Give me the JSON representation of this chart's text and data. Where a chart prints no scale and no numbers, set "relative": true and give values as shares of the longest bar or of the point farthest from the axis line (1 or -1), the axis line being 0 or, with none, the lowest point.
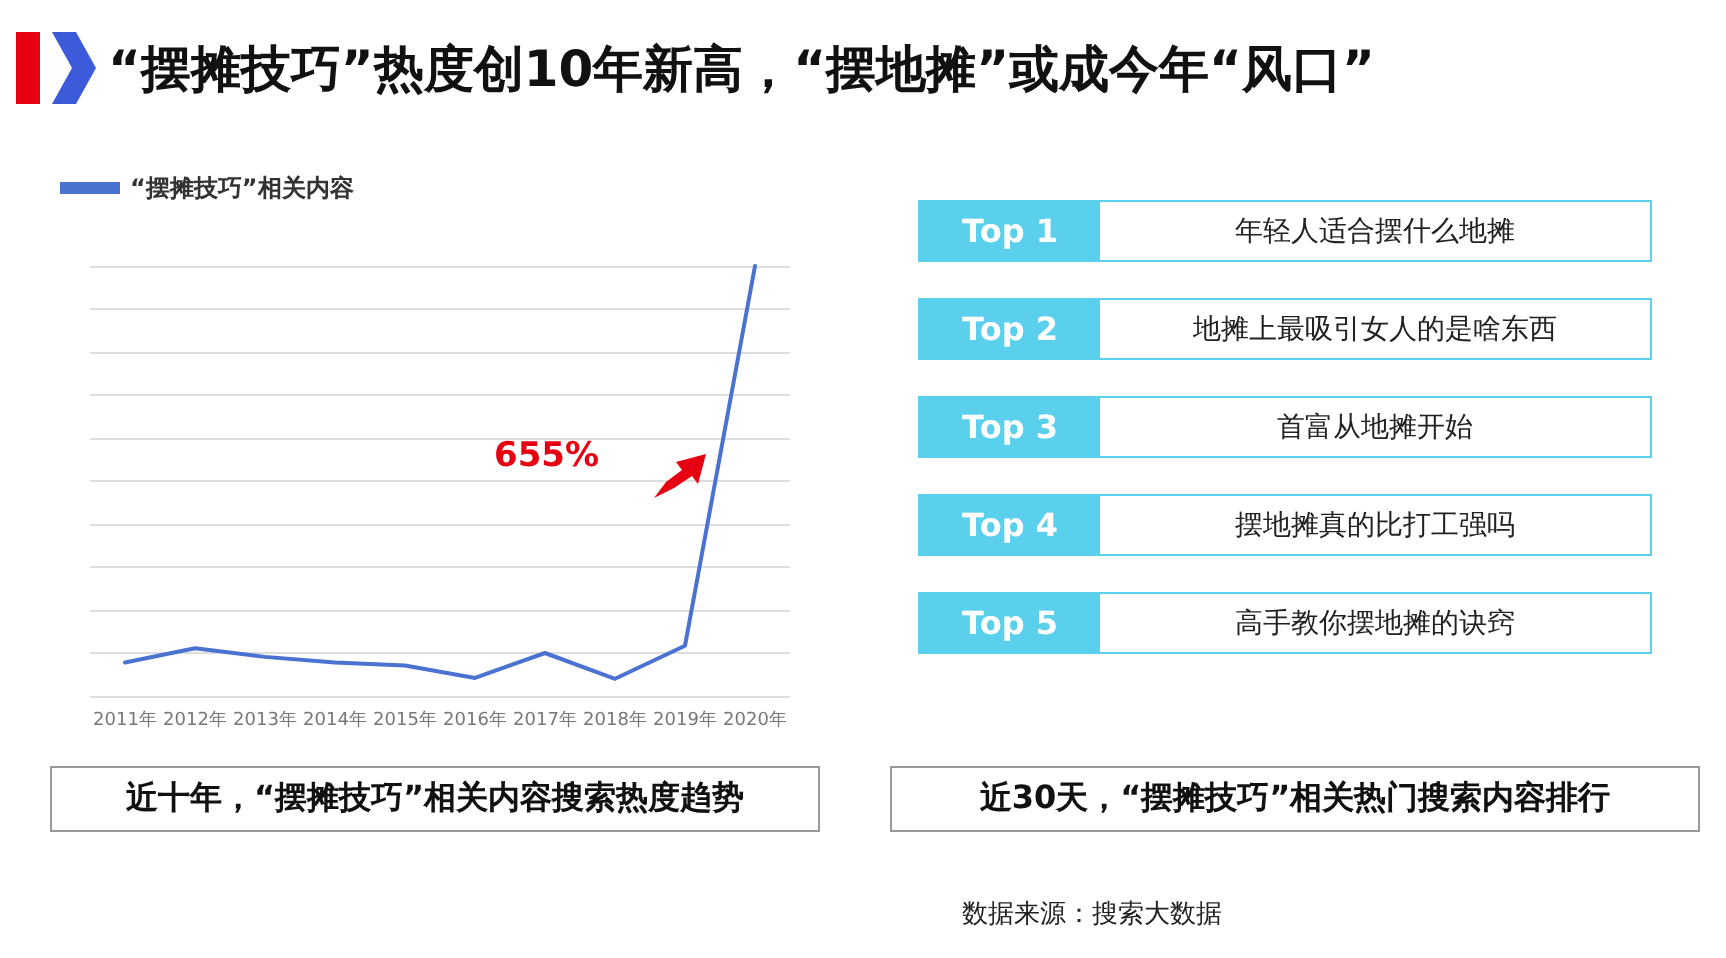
{
  "chart_data": [
    {
      "type": "line",
      "title": "“摆摊技巧”热度创10年新高，“摆地摊”或成今年“风口”",
      "categories": [
        "2011年",
        "2012年",
        "2013年",
        "2014年",
        "2015年",
        "2016年",
        "2017年",
        "2018年",
        "2019年",
        "2020年"
      ],
      "series": [
        {
          "name": "“摆摊技巧”相关内容",
          "color": "#4a72d0",
          "values": [
            0.078,
            0.111,
            0.091,
            0.078,
            0.071,
            0.042,
            0.1,
            0.04,
            0.117,
            1
          ]
        }
      ],
      "relative": true,
      "grid": "y",
      "legend": "top left",
      "marker": "none",
      "line_style": "solid",
      "annotations": [
        "655%",
        "近十年，“摆摊技巧”相关内容搜索热度趋势"
      ]
    },
    {
      "type": "other",
      "title": "近30天，“摆摊技巧”相关热门搜索内容排行",
      "categories": [
        "Top 1",
        "Top 2",
        "Top 3",
        "Top 4",
        "Top 5"
      ],
      "annotations": [
        "年轻人适合摆什么地摊",
        "地摊上最吸引女人的是啥东西",
        "首富从地摊开始",
        "摆地摊真的比打工强吗",
        "高手教你摆地摊的诀窍",
        "数据来源：搜索大数据"
      ]
    }
  ]
}
